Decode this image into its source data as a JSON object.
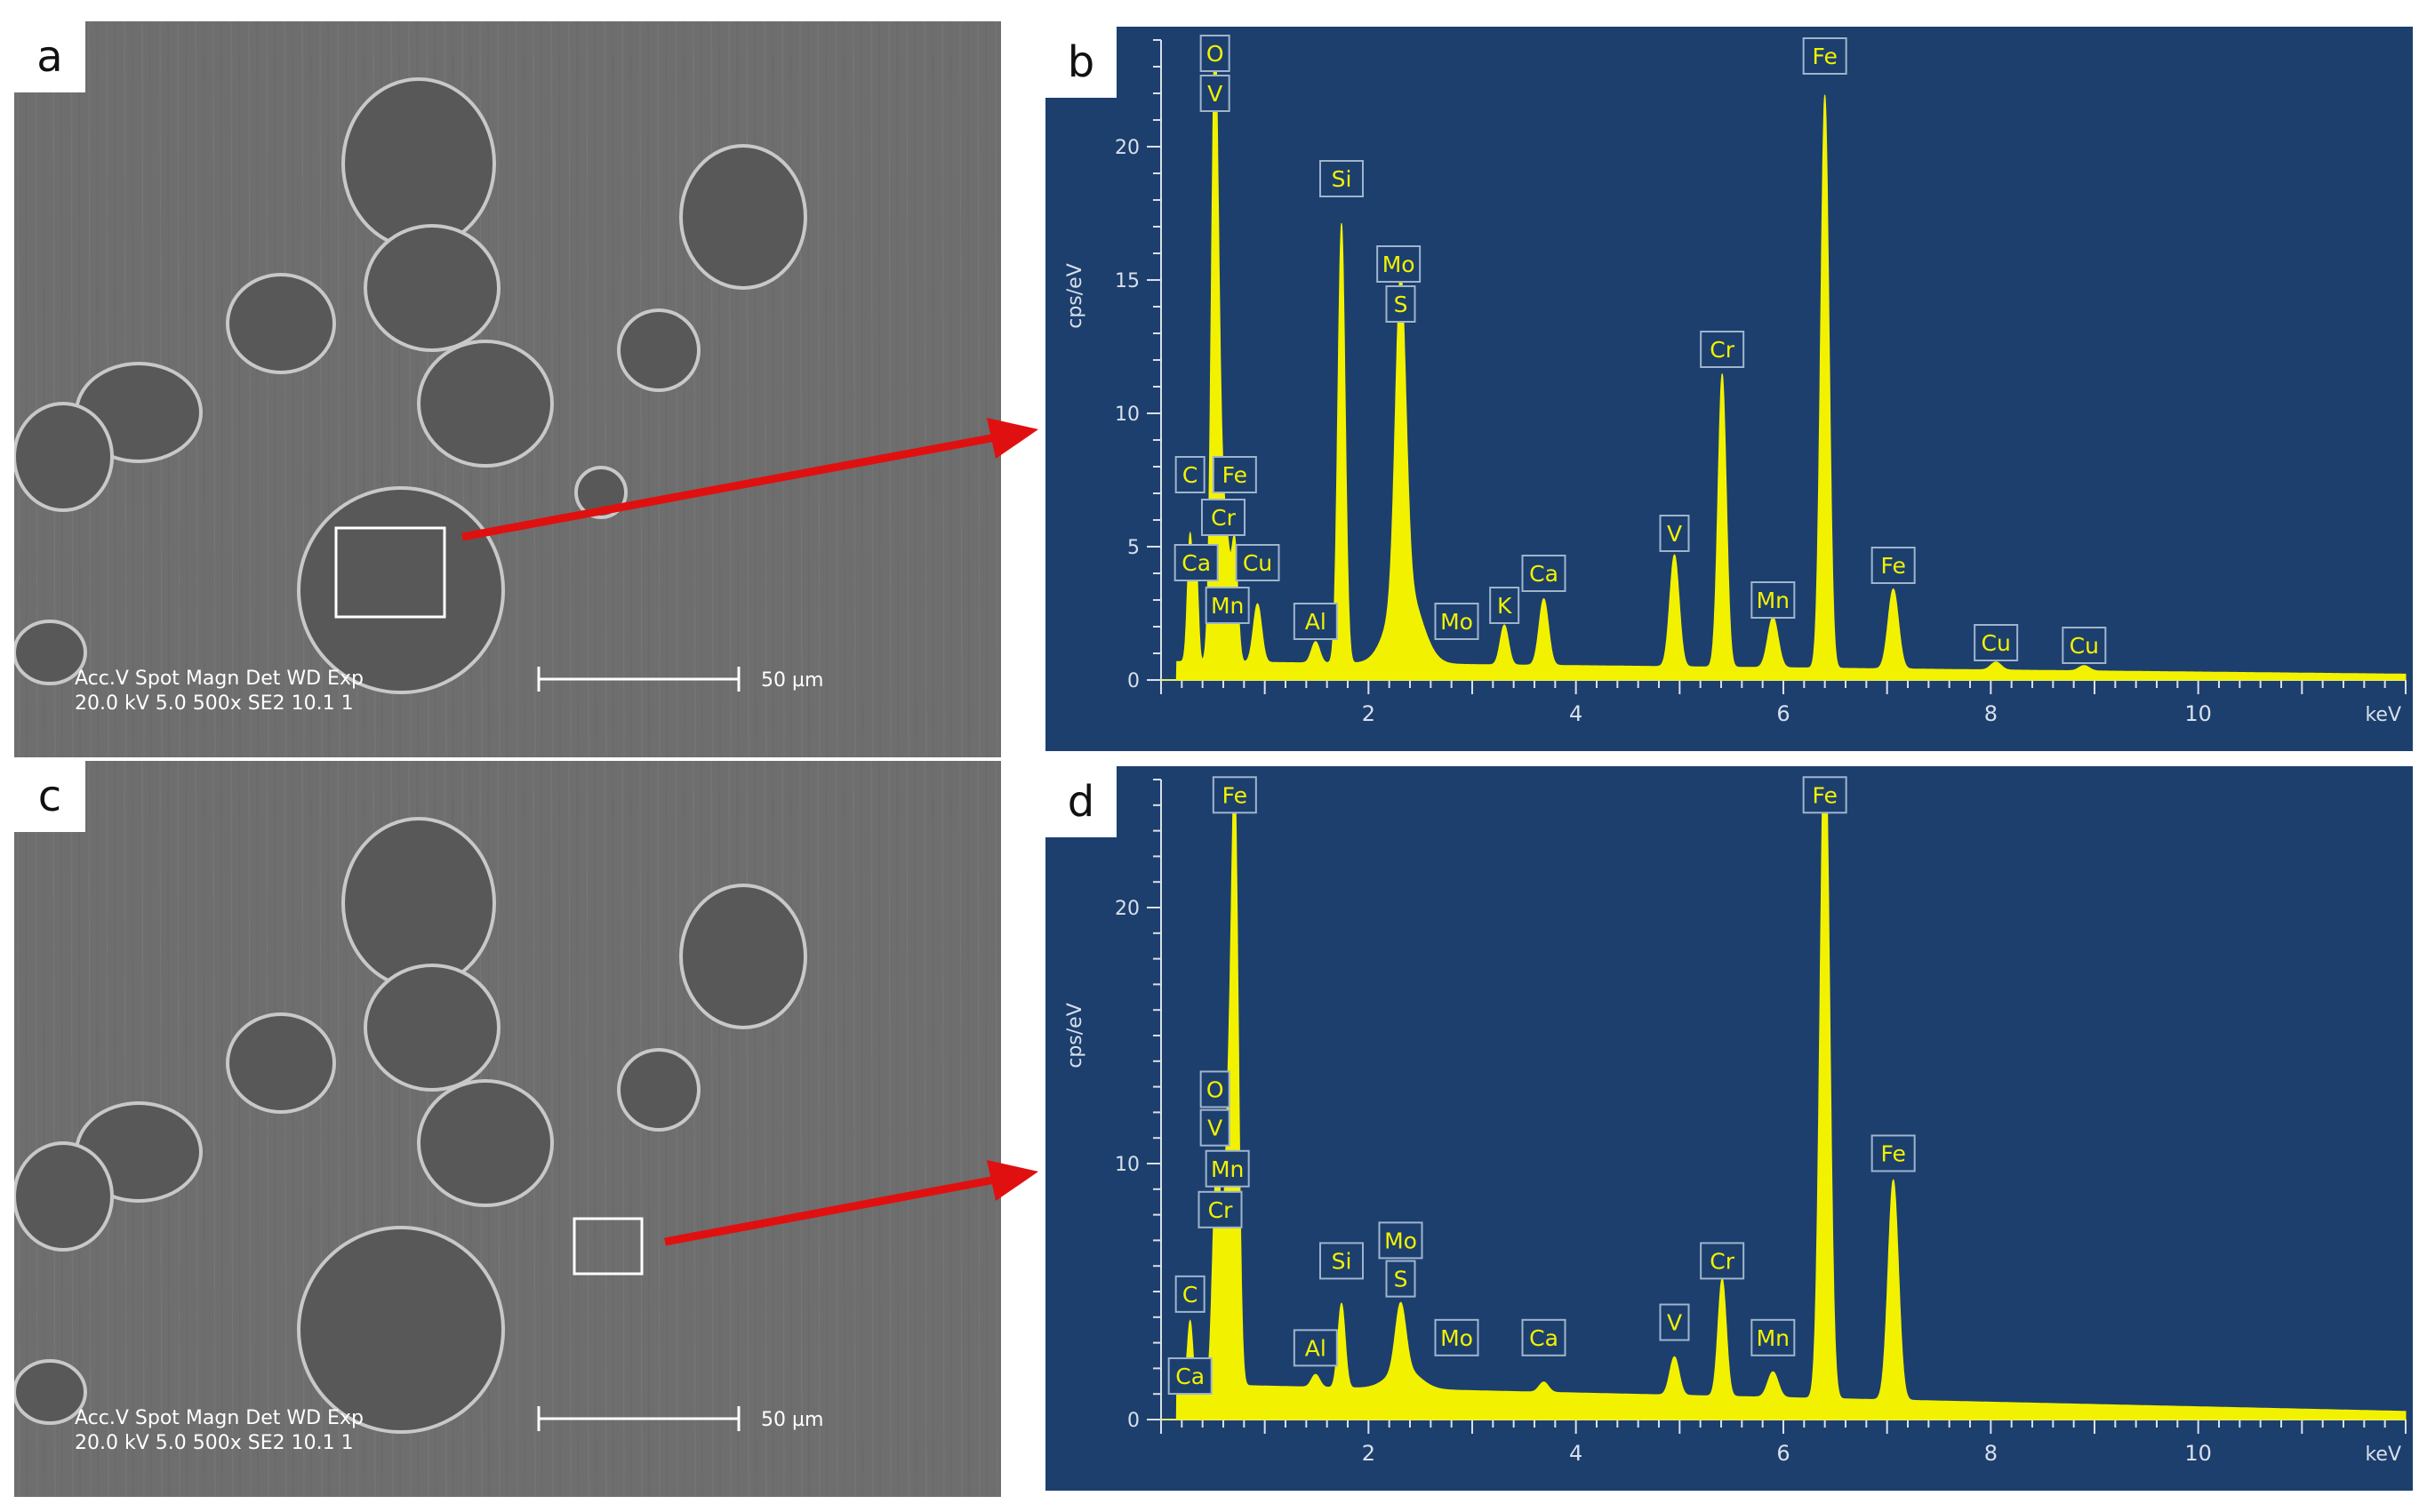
{
  "panel_labels": {
    "a": "a",
    "b": "b",
    "c": "c",
    "d": "d"
  },
  "sem_info": {
    "labels_line": "Acc.V  Spot Magn    Det   WD  Exp",
    "values_line": "20.0 kV 5.0   500x     SE2  10.1  1",
    "scale_text": "50 µm"
  },
  "colors": {
    "spectrum": "#f2f200",
    "background": "#1d3f6e",
    "arrow": "#e01010",
    "axis": "#d8e0ea"
  },
  "chart_data": [
    {
      "type": "area",
      "panel": "b",
      "ylabel": "cps/eV",
      "x_unit": "keV",
      "xlim": [
        0,
        12
      ],
      "ylim": [
        0,
        24
      ],
      "x_ticks": [
        2,
        4,
        6,
        8,
        10
      ],
      "y_ticks": [
        0,
        5,
        10,
        15,
        20
      ],
      "background": {
        "level": 0.7,
        "slope": -0.04
      },
      "peaks": [
        {
          "e": 0.28,
          "h": 4.8,
          "w": 0.025
        },
        {
          "e": 0.34,
          "h": 3.5,
          "w": 0.02
        },
        {
          "e": 0.52,
          "h": 23.5,
          "w": 0.035
        },
        {
          "e": 0.59,
          "h": 4.2,
          "w": 0.03
        },
        {
          "e": 0.64,
          "h": 3.5,
          "w": 0.03
        },
        {
          "e": 0.71,
          "h": 4.5,
          "w": 0.03
        },
        {
          "e": 0.93,
          "h": 2.2,
          "w": 0.04
        },
        {
          "e": 1.49,
          "h": 0.8,
          "w": 0.04
        },
        {
          "e": 1.74,
          "h": 16.5,
          "w": 0.035
        },
        {
          "e": 2.31,
          "h": 11.8,
          "w": 0.05
        },
        {
          "e": 2.35,
          "h": 3.0,
          "w": 0.15
        },
        {
          "e": 3.31,
          "h": 1.5,
          "w": 0.04
        },
        {
          "e": 3.69,
          "h": 2.5,
          "w": 0.045
        },
        {
          "e": 4.95,
          "h": 4.2,
          "w": 0.045
        },
        {
          "e": 5.41,
          "h": 11.0,
          "w": 0.04
        },
        {
          "e": 5.9,
          "h": 1.9,
          "w": 0.05
        },
        {
          "e": 6.4,
          "h": 21.5,
          "w": 0.04
        },
        {
          "e": 7.06,
          "h": 3.0,
          "w": 0.05
        },
        {
          "e": 8.05,
          "h": 0.3,
          "w": 0.05
        },
        {
          "e": 8.9,
          "h": 0.2,
          "w": 0.05
        }
      ],
      "annotations": [
        {
          "text": "O",
          "e": 0.52,
          "y": 23.5
        },
        {
          "text": "V",
          "e": 0.52,
          "y": 22
        },
        {
          "text": "C",
          "e": 0.28,
          "y": 7.7
        },
        {
          "text": "Fe",
          "e": 0.71,
          "y": 7.7
        },
        {
          "text": "Cr",
          "e": 0.6,
          "y": 6.1
        },
        {
          "text": "Ca",
          "e": 0.34,
          "y": 4.4
        },
        {
          "text": "Cu",
          "e": 0.93,
          "y": 4.4
        },
        {
          "text": "Mn",
          "e": 0.64,
          "y": 2.8
        },
        {
          "text": "Al",
          "e": 1.49,
          "y": 2.2
        },
        {
          "text": "Si",
          "e": 1.74,
          "y": 18.8
        },
        {
          "text": "Mo",
          "e": 2.29,
          "y": 15.6
        },
        {
          "text": "S",
          "e": 2.31,
          "y": 14.1
        },
        {
          "text": "Mo",
          "e": 2.85,
          "y": 2.2
        },
        {
          "text": "K",
          "e": 3.31,
          "y": 2.8
        },
        {
          "text": "Ca",
          "e": 3.69,
          "y": 4.0
        },
        {
          "text": "V",
          "e": 4.95,
          "y": 5.5
        },
        {
          "text": "Cr",
          "e": 5.41,
          "y": 12.4
        },
        {
          "text": "Mn",
          "e": 5.9,
          "y": 3.0
        },
        {
          "text": "Fe",
          "e": 6.4,
          "y": 23.4
        },
        {
          "text": "Fe",
          "e": 7.06,
          "y": 4.3
        },
        {
          "text": "Cu",
          "e": 8.05,
          "y": 1.4
        },
        {
          "text": "Cu",
          "e": 8.9,
          "y": 1.3
        }
      ]
    },
    {
      "type": "area",
      "panel": "d",
      "ylabel": "cps/eV",
      "x_unit": "keV",
      "xlim": [
        0,
        12
      ],
      "ylim": [
        0,
        25
      ],
      "x_ticks": [
        2,
        4,
        6,
        8,
        10
      ],
      "y_ticks": [
        0,
        10,
        20
      ],
      "background": {
        "level": 1.4,
        "slope": -0.09
      },
      "peaks": [
        {
          "e": 0.28,
          "h": 2.5,
          "w": 0.025
        },
        {
          "e": 0.52,
          "h": 6.5,
          "w": 0.03
        },
        {
          "e": 0.57,
          "h": 5.5,
          "w": 0.03
        },
        {
          "e": 0.64,
          "h": 8.0,
          "w": 0.03
        },
        {
          "e": 0.71,
          "h": 23.5,
          "w": 0.035
        },
        {
          "e": 1.49,
          "h": 0.5,
          "w": 0.04
        },
        {
          "e": 1.74,
          "h": 3.3,
          "w": 0.035
        },
        {
          "e": 2.31,
          "h": 2.6,
          "w": 0.05
        },
        {
          "e": 2.34,
          "h": 0.8,
          "w": 0.15
        },
        {
          "e": 3.69,
          "h": 0.4,
          "w": 0.045
        },
        {
          "e": 4.95,
          "h": 1.5,
          "w": 0.045
        },
        {
          "e": 5.41,
          "h": 4.6,
          "w": 0.04
        },
        {
          "e": 5.9,
          "h": 1.0,
          "w": 0.05
        },
        {
          "e": 6.4,
          "h": 27.0,
          "w": 0.045
        },
        {
          "e": 7.06,
          "h": 8.6,
          "w": 0.05
        }
      ],
      "annotations": [
        {
          "text": "Fe",
          "e": 0.71,
          "y": 24.4
        },
        {
          "text": "Fe",
          "e": 6.4,
          "y": 24.4
        },
        {
          "text": "O",
          "e": 0.52,
          "y": 12.9
        },
        {
          "text": "V",
          "e": 0.52,
          "y": 11.4
        },
        {
          "text": "Mn",
          "e": 0.64,
          "y": 9.8
        },
        {
          "text": "Cr",
          "e": 0.57,
          "y": 8.2
        },
        {
          "text": "C",
          "e": 0.28,
          "y": 4.9
        },
        {
          "text": "Ca",
          "e": 0.28,
          "y": 1.7
        },
        {
          "text": "Al",
          "e": 1.49,
          "y": 2.8
        },
        {
          "text": "Si",
          "e": 1.74,
          "y": 6.2
        },
        {
          "text": "Mo",
          "e": 2.31,
          "y": 7.0
        },
        {
          "text": "S",
          "e": 2.31,
          "y": 5.5
        },
        {
          "text": "Mo",
          "e": 2.85,
          "y": 3.2
        },
        {
          "text": "Ca",
          "e": 3.69,
          "y": 3.2
        },
        {
          "text": "V",
          "e": 4.95,
          "y": 3.8
        },
        {
          "text": "Cr",
          "e": 5.41,
          "y": 6.2
        },
        {
          "text": "Mn",
          "e": 5.9,
          "y": 3.2
        },
        {
          "text": "Fe",
          "e": 7.06,
          "y": 10.4
        }
      ]
    }
  ]
}
